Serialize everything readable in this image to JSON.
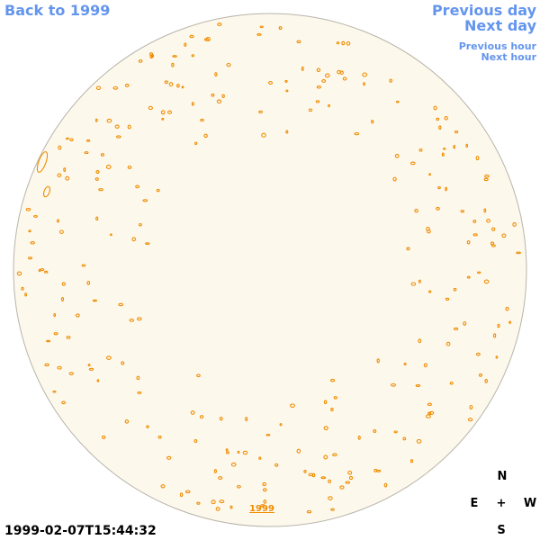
{
  "navigation": {
    "back": "Back to 1999",
    "previous_day": "Previous day",
    "next_day": "Next day",
    "previous_hour": "Previous hour",
    "next_hour": "Next hour"
  },
  "disk_link": "1999",
  "timestamp": "1999-02-07T15:44:32",
  "compass": {
    "north": "N",
    "east": "E",
    "center": "+",
    "west": "W",
    "south": "S"
  }
}
